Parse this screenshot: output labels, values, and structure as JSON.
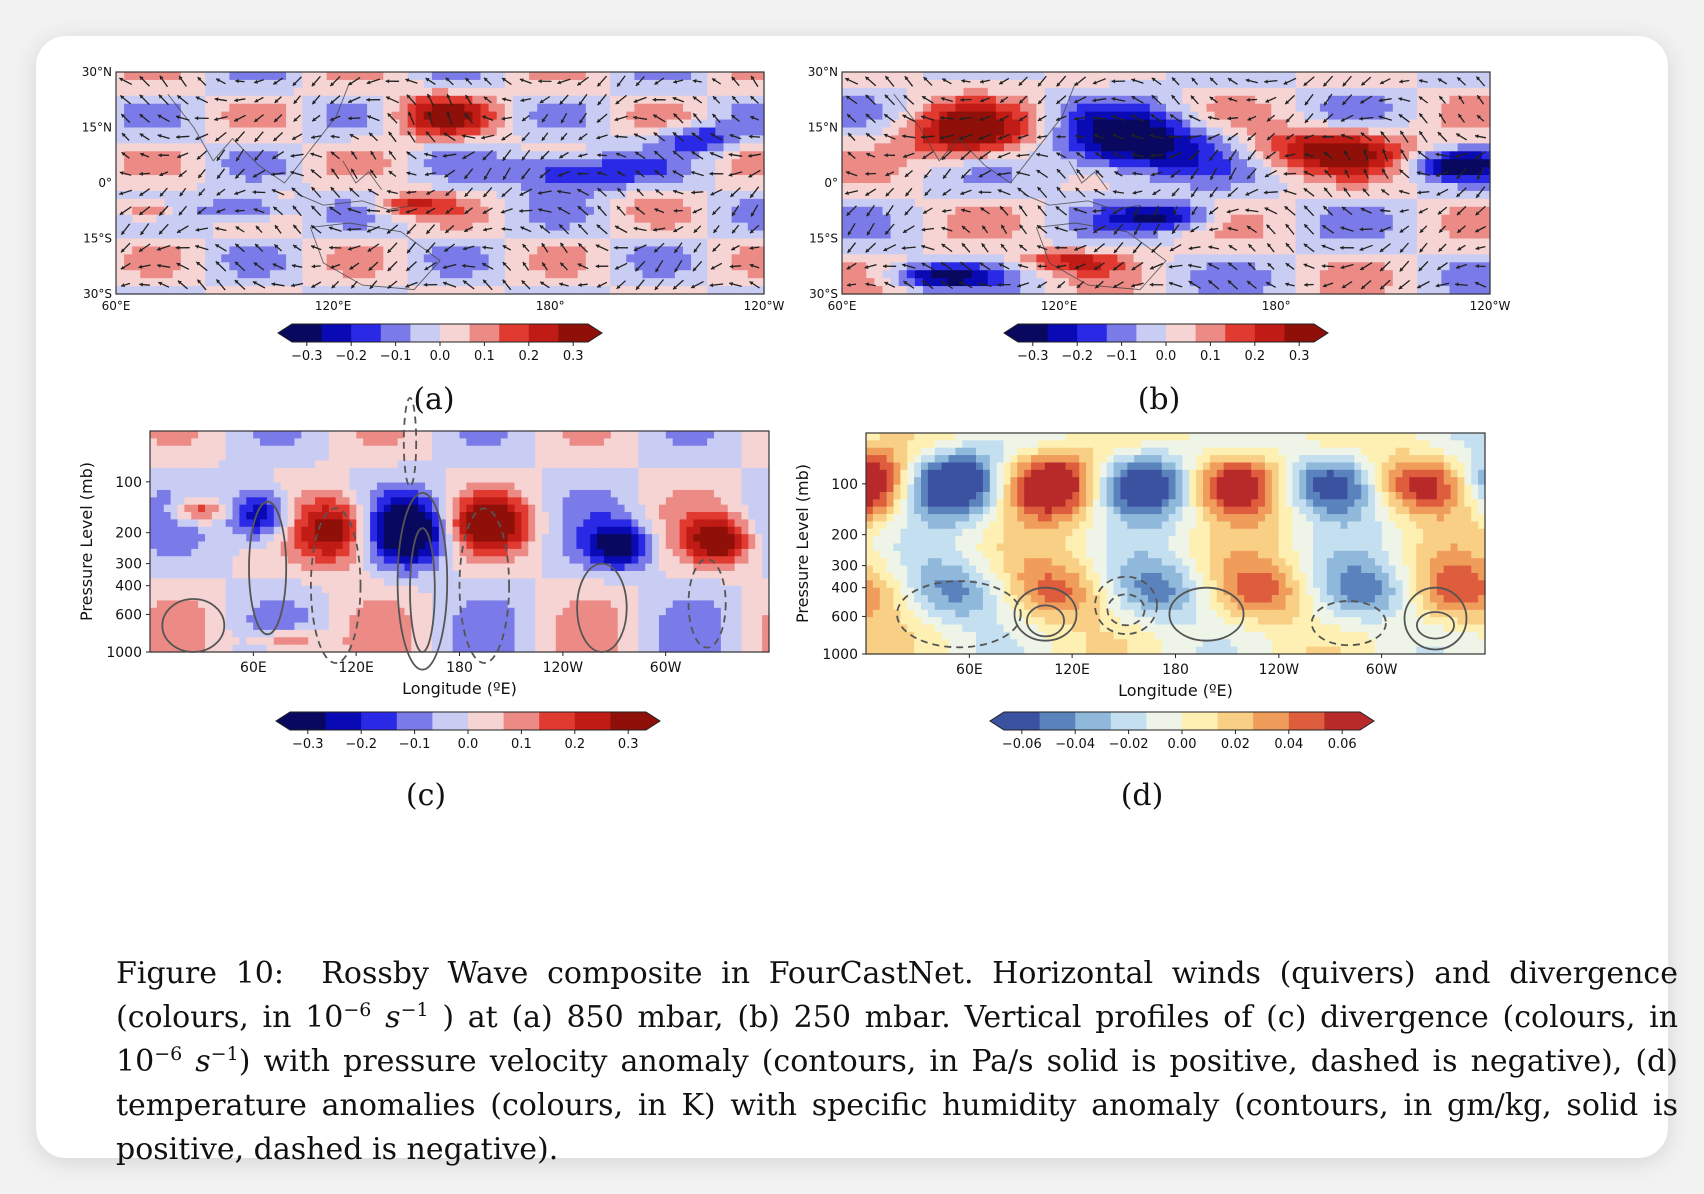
{
  "figure": {
    "panels": [
      {
        "id": "a",
        "label": "(a)",
        "lat_ticks": [
          "30°N",
          "15°N",
          "0°",
          "15°S",
          "30°S"
        ],
        "lon_ticks": [
          "60°E",
          "120°E",
          "180°",
          "120°W"
        ],
        "colorbar_ticks": [
          "−0.3",
          "−0.2",
          "−0.1",
          "0.0",
          "0.1",
          "0.2",
          "0.3"
        ]
      },
      {
        "id": "b",
        "label": "(b)",
        "lat_ticks": [
          "30°N",
          "15°N",
          "0°",
          "15°S",
          "30°S"
        ],
        "lon_ticks": [
          "60°E",
          "120°E",
          "180°",
          "120°W"
        ],
        "colorbar_ticks": [
          "−0.3",
          "−0.2",
          "−0.1",
          "0.0",
          "0.1",
          "0.2",
          "0.3"
        ]
      },
      {
        "id": "c",
        "label": "(c)",
        "ylabel": "Pressure Level (mb)",
        "xlabel": "Longitude (ºE)",
        "y_ticks": [
          "100",
          "200",
          "300",
          "400",
          "600",
          "1000"
        ],
        "x_ticks": [
          "60E",
          "120E",
          "180",
          "120W",
          "60W"
        ],
        "colorbar_ticks": [
          "−0.3",
          "−0.2",
          "−0.1",
          "0.0",
          "0.1",
          "0.2",
          "0.3"
        ]
      },
      {
        "id": "d",
        "label": "(d)",
        "ylabel": "Pressure Level (mb)",
        "xlabel": "Longitude (ºE)",
        "y_ticks": [
          "100",
          "200",
          "300",
          "400",
          "600",
          "1000"
        ],
        "x_ticks": [
          "60E",
          "120E",
          "180",
          "120W",
          "60W"
        ],
        "colorbar_ticks": [
          "−0.06",
          "−0.04",
          "−0.02",
          "0.00",
          "0.02",
          "0.04",
          "0.06"
        ]
      }
    ],
    "colors": {
      "divergence": [
        "#08085e",
        "#0a0ab4",
        "#2a2ae6",
        "#7a7ae8",
        "#c9cdf3",
        "#f6d4d4",
        "#ec8a86",
        "#e13a30",
        "#c01b15",
        "#8e1008"
      ],
      "temperature": [
        "#3a52a0",
        "#5a82bc",
        "#8fb8da",
        "#c3dff0",
        "#eef5e8",
        "#fdf0b2",
        "#f8cf84",
        "#f09c5a",
        "#dd5d3c",
        "#b82a2a"
      ]
    }
  },
  "caption": {
    "fig_label": "Figure 10:",
    "seg1": "Rossby Wave composite in FourCastNet. Horizontal winds (quivers) and divergence (colours, in 10",
    "sup1": "−6",
    "unit1": "s",
    "sup2": "−1",
    "seg2": ") at (a) 850 mbar, (b) 250 mbar. Vertical profiles of (c) divergence (colours, in 10",
    "sup3": "−6",
    "unit2": "s",
    "sup4": "−1",
    "seg3": ") with pressure velocity anomaly (contours, in Pa/s solid is positive, dashed is negative), (d) temperature anomalies (colours, in K) with specific humidity anomaly (contours, in gm/kg, solid is positive, dashed is negative)."
  }
}
